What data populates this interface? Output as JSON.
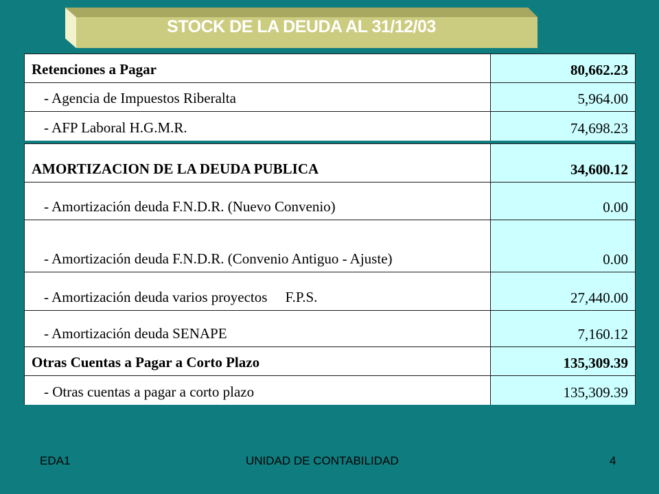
{
  "title": "STOCK DE LA DEUDA AL 31/12/03",
  "block1": [
    {
      "label": "Retenciones a Pagar",
      "value": "80,662.23"
    },
    {
      "label": "- Agencia de Impuestos Riberalta",
      "value": "5,964.00"
    },
    {
      "label": "- AFP Laboral H.G.M.R.",
      "value": "74,698.23"
    }
  ],
  "block2": [
    {
      "label": "AMORTIZACION DE LA DEUDA PUBLICA",
      "value": "34,600.12"
    },
    {
      "label": "- Amortización deuda F.N.D.R. (Nuevo Convenio)",
      "value": "0.00"
    },
    {
      "label": "- Amortización deuda F.N.D.R. (Convenio Antiguo - Ajuste)",
      "value": "0.00"
    },
    {
      "label": "- Amortización deuda varios proyectos     F.P.S.",
      "value": "27,440.00"
    },
    {
      "label": "- Amortización deuda SENAPE",
      "value": "7,160.12"
    },
    {
      "label": "Otras Cuentas a Pagar a Corto Plazo",
      "value": "135,309.39"
    },
    {
      "label": "- Otras cuentas a pagar a corto plazo",
      "value": "135,309.39"
    }
  ],
  "footer": {
    "left": "EDA1",
    "center": "UNIDAD DE CONTABILIDAD",
    "right": "4"
  },
  "colors": {
    "background": "#0f7d80",
    "banner": "#cccc80",
    "value_cell": "#ccffff"
  }
}
